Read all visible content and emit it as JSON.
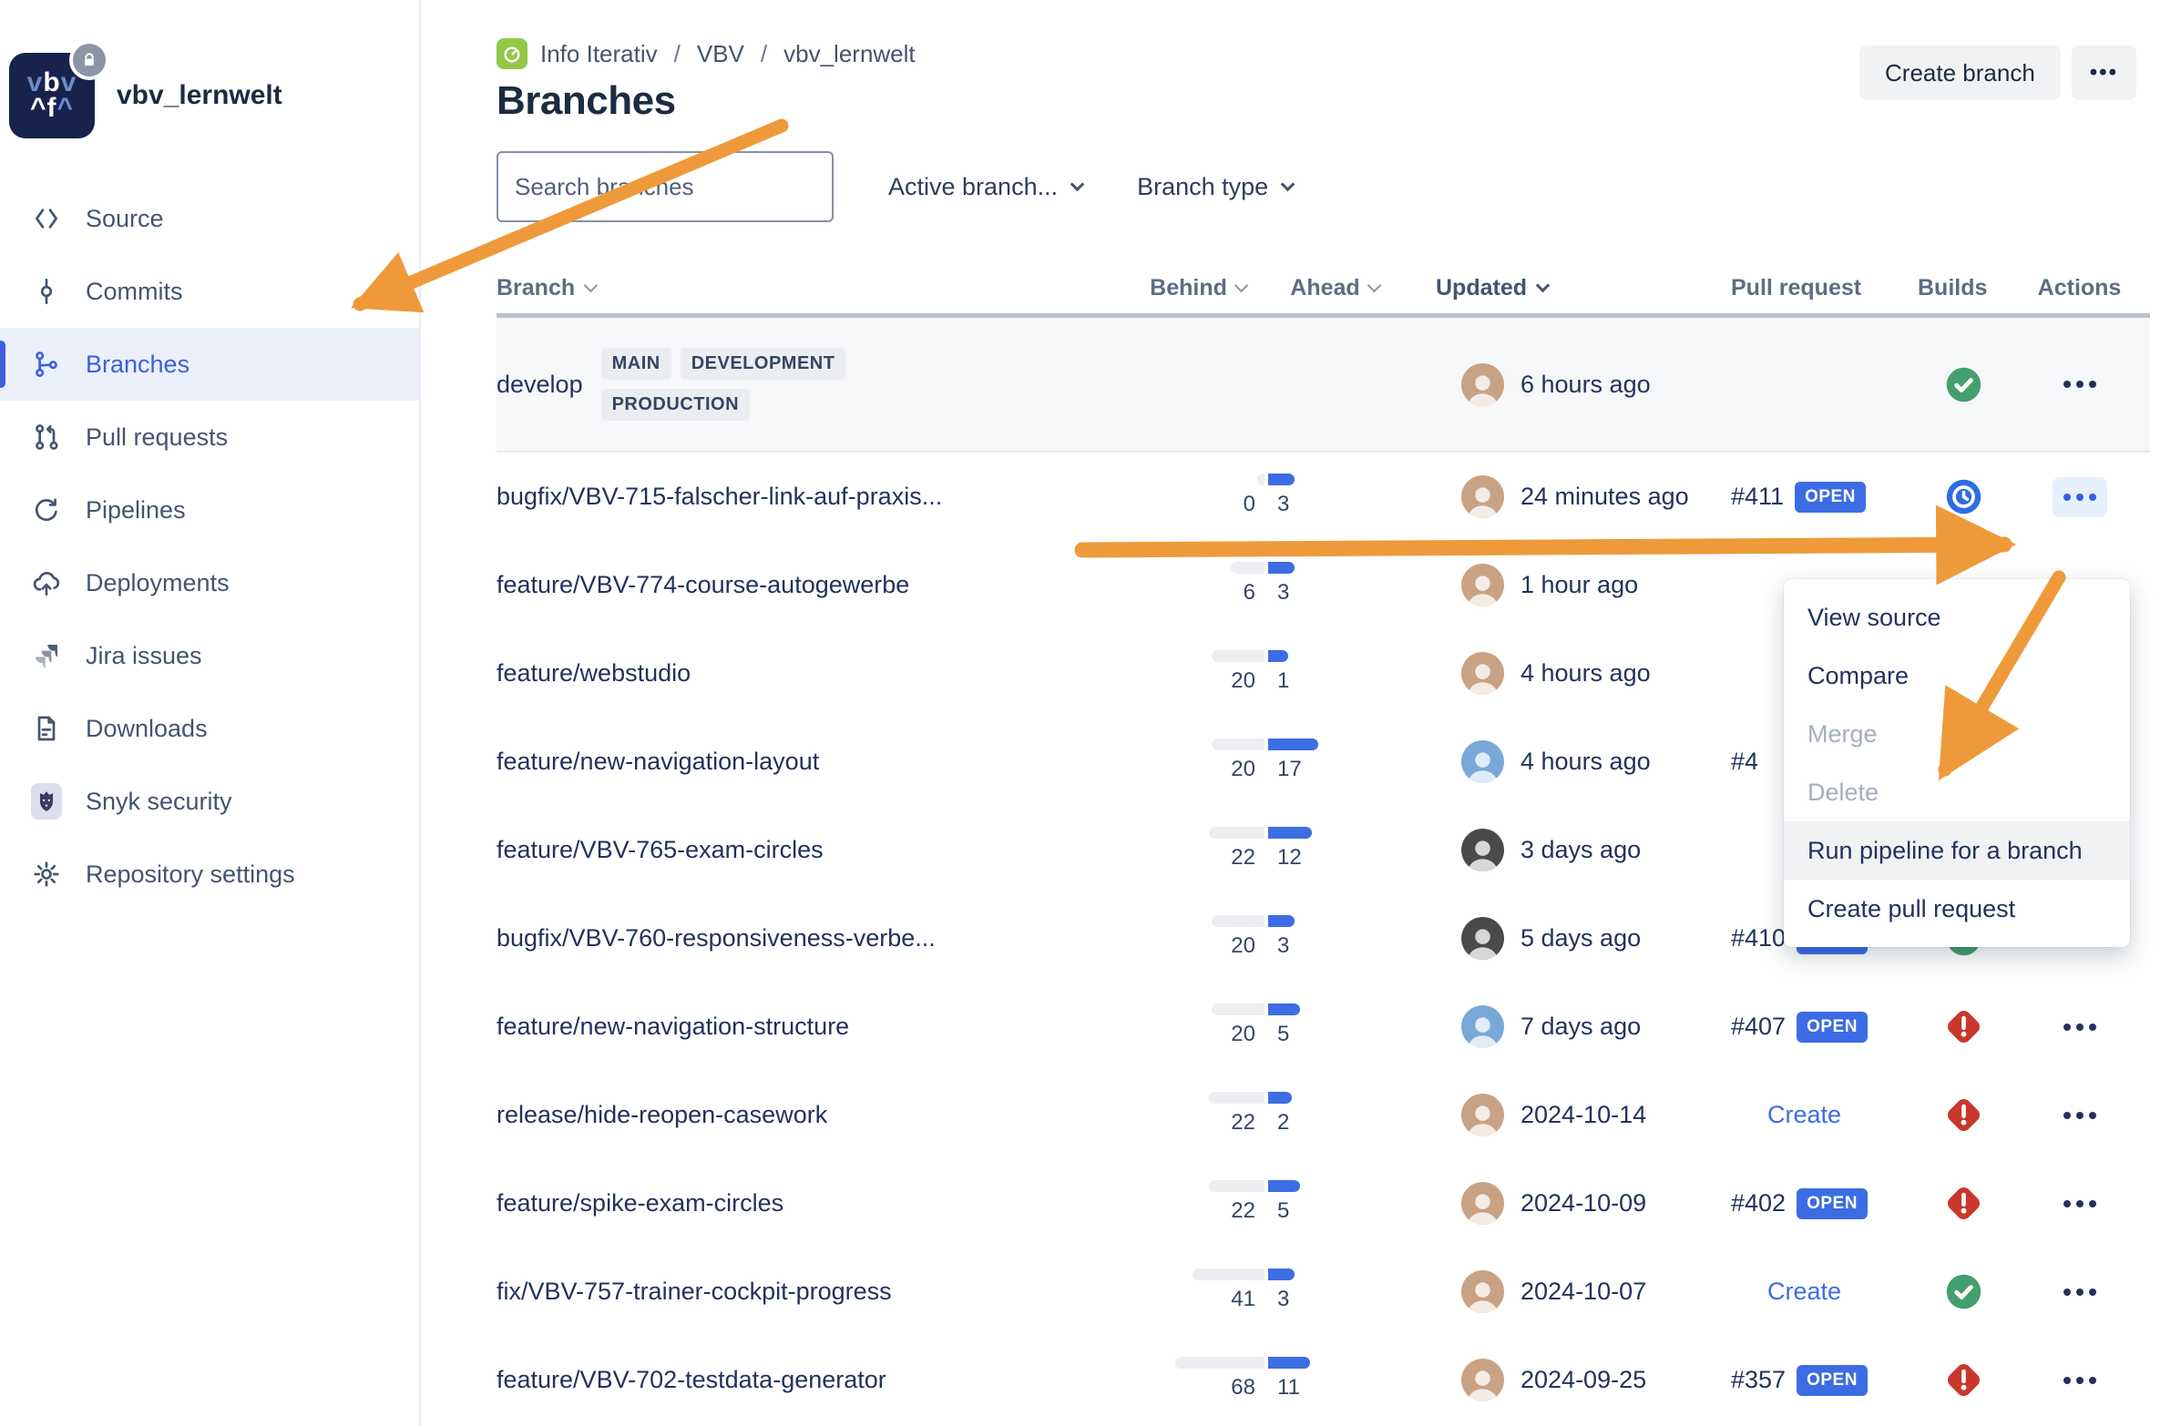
{
  "sidebar": {
    "repo_name": "vbv_lernwelt",
    "logo": {
      "line1": "vbv",
      "line2": "^f^"
    },
    "items": [
      {
        "label": "Source",
        "icon": "source-icon",
        "active": false
      },
      {
        "label": "Commits",
        "icon": "commits-icon",
        "active": false
      },
      {
        "label": "Branches",
        "icon": "branches-icon",
        "active": true
      },
      {
        "label": "Pull requests",
        "icon": "pull-requests-icon",
        "active": false
      },
      {
        "label": "Pipelines",
        "icon": "pipelines-icon",
        "active": false
      },
      {
        "label": "Deployments",
        "icon": "deployments-icon",
        "active": false
      },
      {
        "label": "Jira issues",
        "icon": "jira-icon",
        "active": false
      },
      {
        "label": "Downloads",
        "icon": "downloads-icon",
        "active": false
      },
      {
        "label": "Snyk security",
        "icon": "snyk-icon",
        "active": false
      },
      {
        "label": "Repository settings",
        "icon": "settings-icon",
        "active": false
      }
    ]
  },
  "header": {
    "breadcrumb": [
      "Info Iterativ",
      "VBV",
      "vbv_lernwelt"
    ],
    "title": "Branches",
    "create_branch_label": "Create branch",
    "more_label": "•••"
  },
  "filters": {
    "search_placeholder": "Search branches",
    "dropdown1": "Active branch...",
    "dropdown2": "Branch type"
  },
  "table": {
    "headers": {
      "branch": "Branch",
      "behind": "Behind",
      "ahead": "Ahead",
      "updated": "Updated",
      "pull_request": "Pull request",
      "builds": "Builds",
      "actions": "Actions"
    },
    "develop_row": {
      "name": "develop",
      "badges": [
        "MAIN",
        "DEVELOPMENT",
        "PRODUCTION"
      ],
      "updated": "6 hours ago",
      "build": "success",
      "avatar_color": "#C9A284"
    },
    "rows": [
      {
        "name": "bugfix/VBV-715-falscher-link-auf-praxis...",
        "behind": 0,
        "ahead": 3,
        "updated": "24 minutes ago",
        "pr": "#411",
        "pr_state": "OPEN",
        "build": "inprogress",
        "actions_highlight": true,
        "avatar_color": "#C9A284"
      },
      {
        "name": "feature/VBV-774-course-autogewerbe",
        "behind": 6,
        "ahead": 3,
        "updated": "1 hour ago",
        "pr": null,
        "pr_state": null,
        "build": null,
        "actions_highlight": false,
        "avatar_color": "#C9A284"
      },
      {
        "name": "feature/webstudio",
        "behind": 20,
        "ahead": 1,
        "updated": "4 hours ago",
        "pr": null,
        "pr_state": null,
        "build": null,
        "actions_highlight": false,
        "avatar_color": "#C9A284"
      },
      {
        "name": "feature/new-navigation-layout",
        "behind": 20,
        "ahead": 17,
        "updated": "4 hours ago",
        "pr": "#4",
        "pr_state": null,
        "build": null,
        "actions_highlight": false,
        "avatar_color": "#79A8D8"
      },
      {
        "name": "feature/VBV-765-exam-circles",
        "behind": 22,
        "ahead": 12,
        "updated": "3 days ago",
        "pr": null,
        "pr_state": null,
        "build": null,
        "actions_highlight": false,
        "avatar_color": "#4A4A4A"
      },
      {
        "name": "bugfix/VBV-760-responsiveness-verbe...",
        "behind": 20,
        "ahead": 3,
        "updated": "5 days ago",
        "pr": "#410",
        "pr_state": "OPEN",
        "build": "success",
        "actions_highlight": false,
        "avatar_color": "#4A4A4A"
      },
      {
        "name": "feature/new-navigation-structure",
        "behind": 20,
        "ahead": 5,
        "updated": "7 days ago",
        "pr": "#407",
        "pr_state": "OPEN",
        "build": "failed",
        "actions_highlight": false,
        "avatar_color": "#79A8D8"
      },
      {
        "name": "release/hide-reopen-casework",
        "behind": 22,
        "ahead": 2,
        "updated": "2024-10-14",
        "pr": "Create",
        "pr_state": "CREATE_LINK",
        "build": "failed",
        "actions_highlight": false,
        "avatar_color": "#C9A284"
      },
      {
        "name": "feature/spike-exam-circles",
        "behind": 22,
        "ahead": 5,
        "updated": "2024-10-09",
        "pr": "#402",
        "pr_state": "OPEN",
        "build": "failed",
        "actions_highlight": false,
        "avatar_color": "#C9A284"
      },
      {
        "name": "fix/VBV-757-trainer-cockpit-progress",
        "behind": 41,
        "ahead": 3,
        "updated": "2024-10-07",
        "pr": "Create",
        "pr_state": "CREATE_LINK",
        "build": "success",
        "actions_highlight": false,
        "avatar_color": "#C9A284"
      },
      {
        "name": "feature/VBV-702-testdata-generator",
        "behind": 68,
        "ahead": 11,
        "updated": "2024-09-25",
        "pr": "#357",
        "pr_state": "OPEN",
        "build": "failed",
        "actions_highlight": false,
        "avatar_color": "#C9A284"
      }
    ]
  },
  "context_menu": {
    "items": [
      {
        "label": "View source",
        "disabled": false,
        "hover": false
      },
      {
        "label": "Compare",
        "disabled": false,
        "hover": false
      },
      {
        "label": "Merge",
        "disabled": true,
        "hover": false
      },
      {
        "label": "Delete",
        "disabled": true,
        "hover": false
      },
      {
        "label": "Run pipeline for a branch",
        "disabled": false,
        "hover": true
      },
      {
        "label": "Create pull request",
        "disabled": false,
        "hover": false
      }
    ]
  },
  "colors": {
    "accent_blue": "#3C6CE4",
    "success_green": "#459E6D",
    "failed_red": "#C9372C",
    "annotation_orange": "#EE9A3B",
    "navy_text": "#1C2B41"
  }
}
